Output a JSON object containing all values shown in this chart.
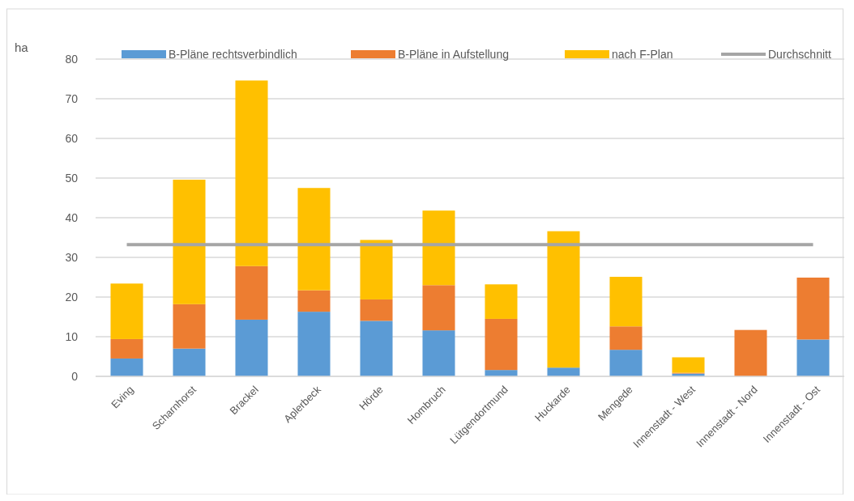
{
  "chart_data": {
    "type": "bar",
    "stacked": true,
    "ylabel": "ha",
    "categories": [
      "Eving",
      "Scharnhorst",
      "Brackel",
      "Aplerbeck",
      "Hörde",
      "Hombruch",
      "Lütgendortmund",
      "Huckarde",
      "Mengede",
      "Innenstadt - West",
      "Innenstadt - Nord",
      "Innenstadt - Ost"
    ],
    "series": [
      {
        "name": "B-Pläne rechtsverbindlich",
        "color": "#5b9bd5",
        "values": [
          4.5,
          7.0,
          14.3,
          16.3,
          14.0,
          11.6,
          1.6,
          2.2,
          6.7,
          0.7,
          null,
          9.3
        ]
      },
      {
        "name": "B-Pläne in Aufstellung",
        "color": "#ed7d31",
        "values": [
          4.9,
          11.2,
          13.5,
          5.4,
          5.4,
          11.4,
          12.9,
          0,
          5.9,
          0.2,
          11.7,
          15.6
        ]
      },
      {
        "name": "nach F-Plan",
        "color": "#ffc000",
        "values": [
          14.0,
          31.4,
          46.8,
          25.8,
          15.0,
          18.8,
          8.7,
          34.4,
          12.5,
          3.9,
          0,
          0
        ]
      },
      {
        "name": "Durchschnitt",
        "type": "line",
        "color": "#a5a5a5",
        "values": [
          33.2,
          33.2,
          33.2,
          33.2,
          33.2,
          33.2,
          33.2,
          33.2,
          33.2,
          33.2,
          33.2,
          33.2
        ]
      }
    ],
    "ylim": [
      0,
      80
    ],
    "yticks": [
      0,
      10,
      20,
      30,
      40,
      50,
      60,
      70,
      80
    ],
    "grid": "y",
    "legend": "top",
    "marker": "none"
  }
}
